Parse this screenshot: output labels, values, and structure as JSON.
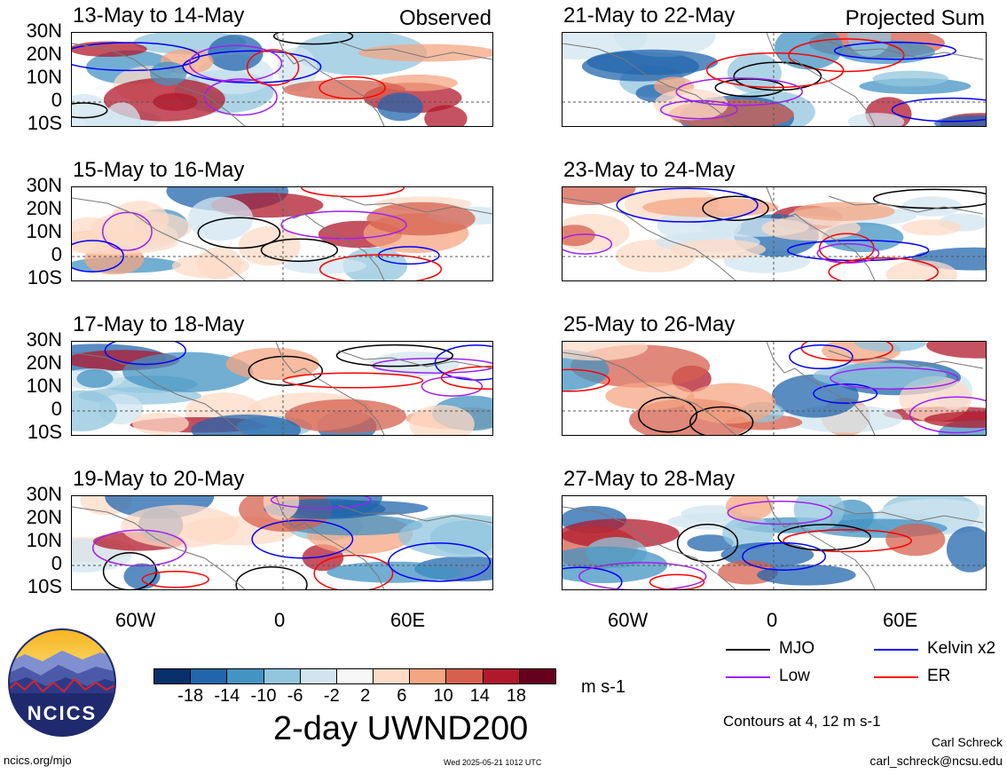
{
  "panels": [
    {
      "title": "13-May to 14-May",
      "label": "Observed"
    },
    {
      "title": "15-May to 16-May",
      "label": ""
    },
    {
      "title": "17-May to 18-May",
      "label": ""
    },
    {
      "title": "19-May to 20-May",
      "label": ""
    },
    {
      "title": "21-May to 22-May",
      "label": "Projected Sum"
    },
    {
      "title": "23-May to 24-May",
      "label": ""
    },
    {
      "title": "25-May to 26-May",
      "label": ""
    },
    {
      "title": "27-May to 28-May",
      "label": ""
    }
  ],
  "lat_labels": [
    "30N",
    "20N",
    "10N",
    "0",
    "10S"
  ],
  "lon_labels": [
    "60W",
    "0",
    "60E"
  ],
  "colorbar": {
    "ticks": [
      "-18",
      "-14",
      "-10",
      "-6",
      "-2",
      "2",
      "6",
      "10",
      "14",
      "18"
    ],
    "colors": [
      "#08306b",
      "#2166ac",
      "#4393c3",
      "#92c5de",
      "#d1e5f0",
      "#f7f7f7",
      "#fddbc7",
      "#f4a582",
      "#d6604d",
      "#b2182b",
      "#67001f"
    ],
    "units": "m s-1"
  },
  "legend": {
    "mjo": "MJO",
    "kelvin": "Kelvin x2",
    "low": "Low",
    "er": "ER",
    "mjo_color": "#000000",
    "kelvin_color": "#0000ff",
    "low_color": "#a020f0",
    "er_color": "#ff0000"
  },
  "main_title": "2-day UWND200",
  "contours_note": "Contours at 4, 12 m s-1",
  "author": "Carl Schreck",
  "email": "carl_schreck@ncsu.edu",
  "site": "ncics.org/mjo",
  "timestamp": "Wed 2025-05-21 1012 UTC",
  "logo_text": "NCICS"
}
